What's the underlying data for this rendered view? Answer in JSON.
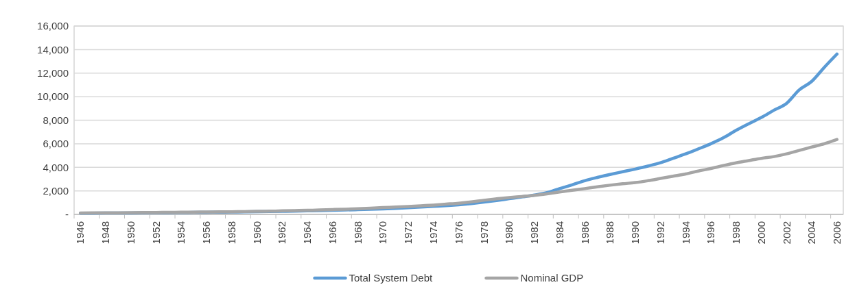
{
  "chart_data": {
    "type": "line",
    "categories": [
      "1946",
      null,
      "1948",
      null,
      "1950",
      null,
      "1952",
      null,
      "1954",
      null,
      "1956",
      null,
      "1958",
      null,
      "1960",
      null,
      "1962",
      null,
      "1964",
      null,
      "1966",
      null,
      "1968",
      null,
      "1970",
      null,
      "1972",
      null,
      "1974",
      null,
      "1976",
      null,
      "1978",
      null,
      "1980",
      null,
      "1982",
      null,
      "1984",
      null,
      "1986",
      null,
      "1988",
      null,
      "1990",
      null,
      "1992",
      null,
      "1994",
      null,
      "1996",
      null,
      "1998",
      null,
      "2000",
      null,
      "2002",
      null,
      "2004",
      null,
      "2006"
    ],
    "series": [
      {
        "name": "Total System Debt",
        "color": "#5b9bd5",
        "values": [
          100,
          105,
          110,
          115,
          120,
          130,
          140,
          150,
          160,
          170,
          180,
          190,
          200,
          215,
          230,
          245,
          260,
          280,
          300,
          325,
          350,
          375,
          405,
          435,
          470,
          510,
          560,
          620,
          680,
          740,
          820,
          920,
          1040,
          1180,
          1330,
          1480,
          1640,
          1850,
          2190,
          2510,
          2860,
          3140,
          3390,
          3620,
          3850,
          4100,
          4380,
          4760,
          5140,
          5560,
          6000,
          6510,
          7140,
          7700,
          8230,
          8850,
          9430,
          10570,
          11300,
          12500,
          13620
        ]
      },
      {
        "name": "Nominal GDP",
        "color": "#a5a5a5",
        "values": [
          120,
          125,
          130,
          135,
          145,
          155,
          165,
          175,
          185,
          195,
          205,
          215,
          225,
          240,
          255,
          270,
          300,
          320,
          345,
          375,
          410,
          440,
          475,
          520,
          580,
          620,
          670,
          730,
          790,
          870,
          950,
          1060,
          1200,
          1320,
          1430,
          1520,
          1620,
          1750,
          1900,
          2050,
          2190,
          2340,
          2480,
          2600,
          2700,
          2860,
          3050,
          3240,
          3430,
          3680,
          3900,
          4150,
          4380,
          4570,
          4760,
          4910,
          5140,
          5430,
          5720,
          6000,
          6360
        ]
      }
    ],
    "ylim": [
      0,
      16000
    ],
    "yticks": [
      {
        "value": 0,
        "label": "-"
      },
      {
        "value": 2000,
        "label": "2,000"
      },
      {
        "value": 4000,
        "label": "4,000"
      },
      {
        "value": 6000,
        "label": "6,000"
      },
      {
        "value": 8000,
        "label": "8,000"
      },
      {
        "value": 10000,
        "label": "10,000"
      },
      {
        "value": 12000,
        "label": "12,000"
      },
      {
        "value": 14000,
        "label": "14,000"
      },
      {
        "value": 16000,
        "label": "16,000"
      }
    ],
    "grid": "y",
    "legend": "bottom",
    "marker": "none",
    "line_style": "solid"
  }
}
